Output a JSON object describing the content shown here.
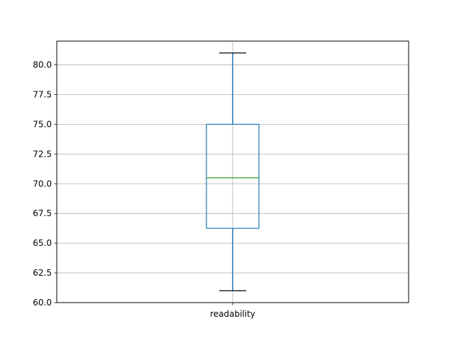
{
  "chart_data": {
    "type": "box",
    "title": "",
    "xlabel": "",
    "ylabel": "",
    "categories": [
      "readability"
    ],
    "boxes": [
      {
        "label": "readability",
        "whisker_low": 61.0,
        "q1": 66.25,
        "median": 70.5,
        "q3": 75.0,
        "whisker_high": 81.0
      }
    ],
    "ylim": [
      60.0,
      82.0
    ],
    "yticks": [
      60.0,
      62.5,
      65.0,
      67.5,
      70.0,
      72.5,
      75.0,
      77.5,
      80.0
    ],
    "ytick_labels": [
      "60.0",
      "62.5",
      "65.0",
      "67.5",
      "70.0",
      "72.5",
      "75.0",
      "77.5",
      "80.0"
    ],
    "grid": true,
    "colors": {
      "box": "#1f77b4",
      "median": "#2ca02c",
      "caps": "#000000",
      "grid": "#b0b0b0"
    }
  }
}
